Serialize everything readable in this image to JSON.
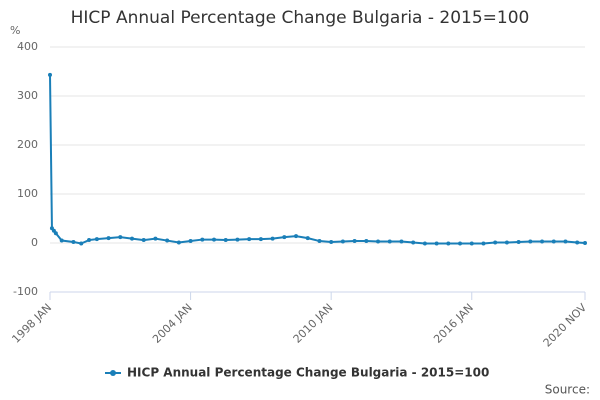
{
  "chart_data": {
    "type": "line",
    "title": "HICP Annual Percentage Change Bulgaria - 2015=100",
    "y_label": "%",
    "source": "Source:",
    "x": [
      1998.0,
      1998.083,
      1998.167,
      1998.25,
      1998.5,
      1999.0,
      1999.333,
      1999.667,
      2000.0,
      2000.5,
      2001.0,
      2001.5,
      2002.0,
      2002.5,
      2003.0,
      2003.5,
      2004.0,
      2004.5,
      2005.0,
      2005.5,
      2006.0,
      2006.5,
      2007.0,
      2007.5,
      2008.0,
      2008.5,
      2009.0,
      2009.5,
      2010.0,
      2010.5,
      2011.0,
      2011.5,
      2012.0,
      2012.5,
      2013.0,
      2013.5,
      2014.0,
      2014.5,
      2015.0,
      2015.5,
      2016.0,
      2016.5,
      2017.0,
      2017.5,
      2018.0,
      2018.5,
      2019.0,
      2019.5,
      2020.0,
      2020.5,
      2020.833
    ],
    "series": [
      {
        "name": "HICP Annual Percentage Change Bulgaria - 2015=100",
        "color": "#1a7fb8",
        "values": [
          343,
          30,
          25,
          20,
          5,
          2,
          -1,
          6,
          8,
          10,
          12,
          9,
          6,
          9,
          5,
          1,
          4,
          7,
          7,
          6,
          7,
          8,
          8,
          9,
          12,
          14,
          10,
          4,
          2,
          3,
          4,
          4,
          3,
          3,
          3,
          1,
          -1,
          -1,
          -1,
          -1,
          -1,
          -1,
          1,
          1,
          2,
          3,
          3,
          3,
          3,
          1,
          0
        ]
      }
    ],
    "xlim": [
      1998.0,
      2020.833
    ],
    "xticks": [
      {
        "value": 1998.0,
        "label": "1998 JAN"
      },
      {
        "value": 2004.0,
        "label": "2004 JAN"
      },
      {
        "value": 2010.0,
        "label": "2010 JAN"
      },
      {
        "value": 2016.0,
        "label": "2016 JAN"
      },
      {
        "value": 2020.833,
        "label": "2020 NOV"
      }
    ],
    "ylim": [
      -100,
      400
    ],
    "yticks": [
      -100,
      0,
      100,
      200,
      300,
      400
    ],
    "grid": true
  }
}
